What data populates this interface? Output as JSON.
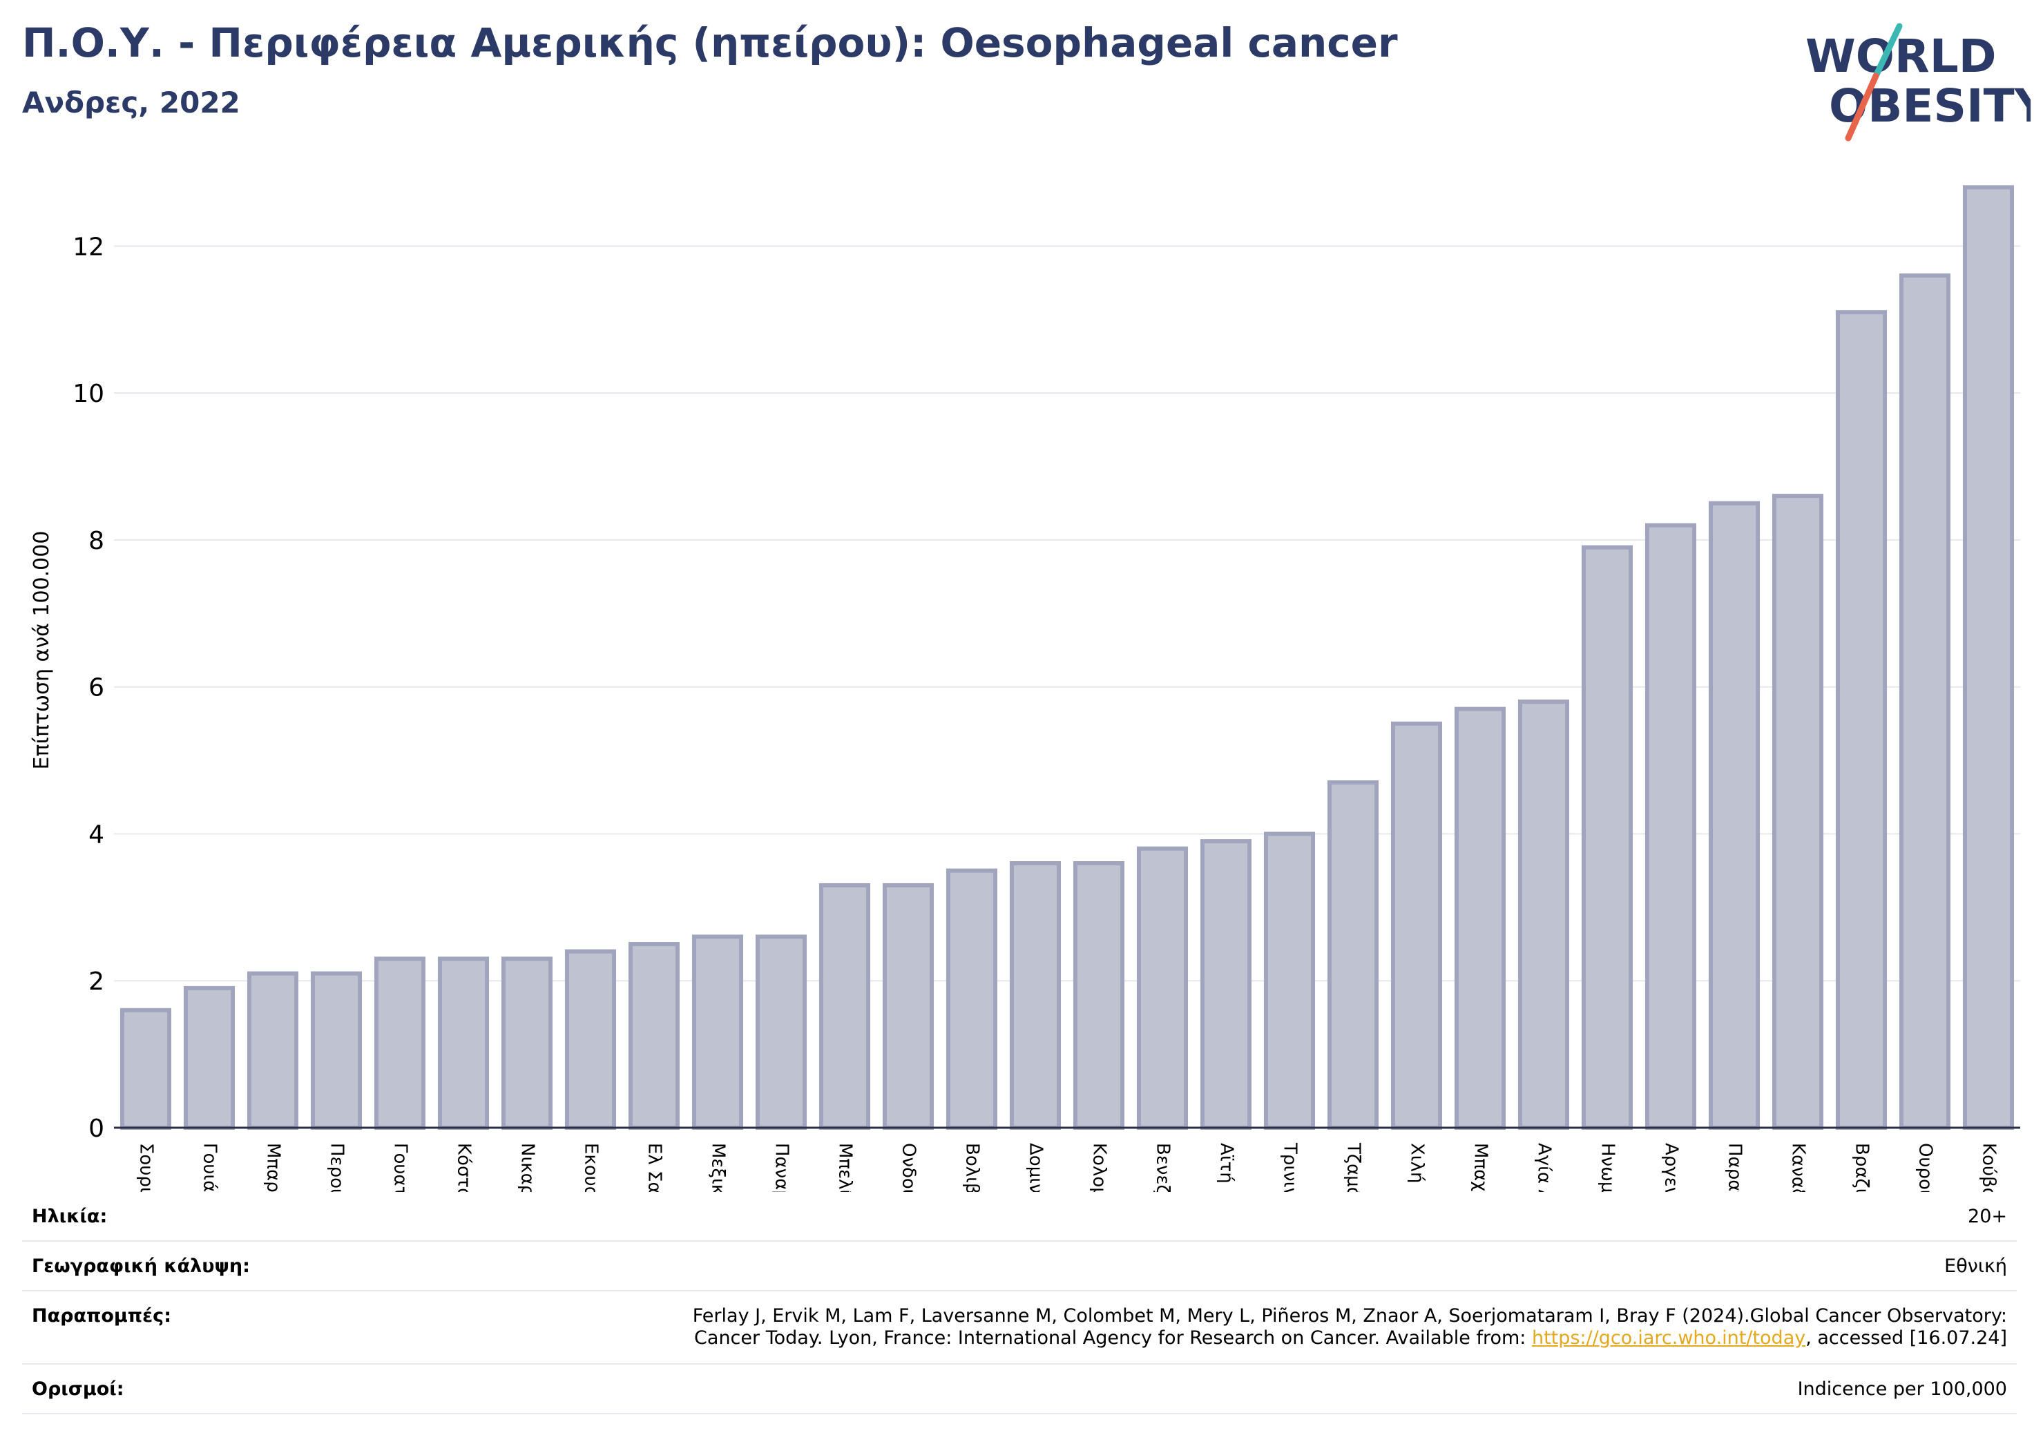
{
  "header": {
    "title": "Π.Ο.Υ. - Περιφέρεια Αμερικής (ηπείρου): Oesophageal cancer",
    "subtitle": "Ανδρες, 2022"
  },
  "logo": {
    "line1": "WORLD",
    "line2": "OBESITY",
    "colors": {
      "text": "#2b3a67",
      "slash_top": "#3cb8b4",
      "slash_bottom": "#e8644a"
    }
  },
  "chart_data": {
    "type": "bar",
    "ylabel": "Επίπτωση ανά 100.000",
    "ylim": [
      0,
      13
    ],
    "yticks": [
      0,
      2,
      4,
      6,
      8,
      10,
      12
    ],
    "grid": true,
    "bar_color": "#bfc2d0",
    "bar_edge_color": "#a0a5bd",
    "categories": [
      "Σουρινάμ",
      "Γουιάνα",
      "Μπαρμπάντος",
      "Περού",
      "Γουατεμάλα",
      "Κόστα Ρίκα",
      "Νικαράγουα",
      "Εκουαδόρ",
      "Ελ Σαλβαδόρ",
      "Μεξικό",
      "Παναμάς",
      "Μπελίζ",
      "Ονδούρα",
      "Βολιβία",
      "Δομινικανή Δημοκρατία",
      "Κολομβία",
      "Βενεζουέλα",
      "Αϊτή",
      "Τρινιντάντ και Τομπάγκο",
      "Τζαμάικα",
      "Χιλή",
      "Μπαχάμες",
      "Αγία Λουκία",
      "Ηνωμένες Πολιτείες",
      "Αργεντινή",
      "Παραγουάη",
      "Καναδάς",
      "Βραζιλία",
      "Ουρουγουάη",
      "Κούβα"
    ],
    "values": [
      1.6,
      1.9,
      2.1,
      2.1,
      2.3,
      2.3,
      2.3,
      2.4,
      2.5,
      2.6,
      2.6,
      3.3,
      3.3,
      3.5,
      3.6,
      3.6,
      3.8,
      3.9,
      4.0,
      4.7,
      5.5,
      5.7,
      5.8,
      7.9,
      8.2,
      8.5,
      8.6,
      11.1,
      11.6,
      12.8
    ]
  },
  "meta": {
    "age": {
      "label": "Ηλικία:",
      "value": "20+"
    },
    "coverage": {
      "label": "Γεωγραφική κάλυψη:",
      "value": "Εθνική"
    },
    "references": {
      "label": "Παραπομπές:",
      "line1": "Ferlay J, Ervik M, Lam F, Laversanne M, Colombet M, Mery L, Piñeros M, Znaor A, Soerjomataram I, Bray F (2024).Global Cancer Observatory:",
      "line2_pre": "Cancer Today. Lyon, France: International Agency for Research on Cancer. Available from: ",
      "link": "https://gco.iarc.who.int/today",
      "line2_post": ", accessed [16.07.24]"
    },
    "definitions": {
      "label": "Ορισμοί:",
      "value": "Indicence per 100,000"
    }
  }
}
